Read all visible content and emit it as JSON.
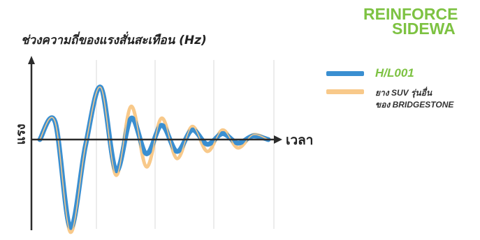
{
  "header": {
    "line1": "REINFORCE",
    "line2": "SIDEWA"
  },
  "chart_data": {
    "type": "line",
    "title": "ช่วงความถี่ของแรงสั่นสะเทือน (Hz)",
    "xlabel": "เวลา",
    "ylabel": "แรง",
    "grid": true,
    "legend_placement": "right",
    "series": [
      {
        "name": "H/L001",
        "color": "#3a8fd1",
        "values": [
          0,
          0.15,
          -0.74,
          -0.05,
          0.44,
          -0.26,
          0.18,
          -0.12,
          0.12,
          -0.1,
          0.08,
          -0.04,
          0.05,
          -0.03,
          0.03,
          0
        ]
      },
      {
        "name_line1": "ยาง SUV รุ่นอื่น",
        "name_line2": "ของ BRIDGESTONE",
        "color": "#f8c98a",
        "values": [
          0,
          0.15,
          -0.78,
          -0.05,
          0.44,
          -0.3,
          0.28,
          -0.23,
          0.18,
          -0.16,
          0.11,
          -0.1,
          0.08,
          -0.07,
          0.04,
          0
        ]
      }
    ]
  },
  "colors": {
    "accent": "#7dc242",
    "axis": "#2b2b2b",
    "grid": "#d8d8d8"
  }
}
